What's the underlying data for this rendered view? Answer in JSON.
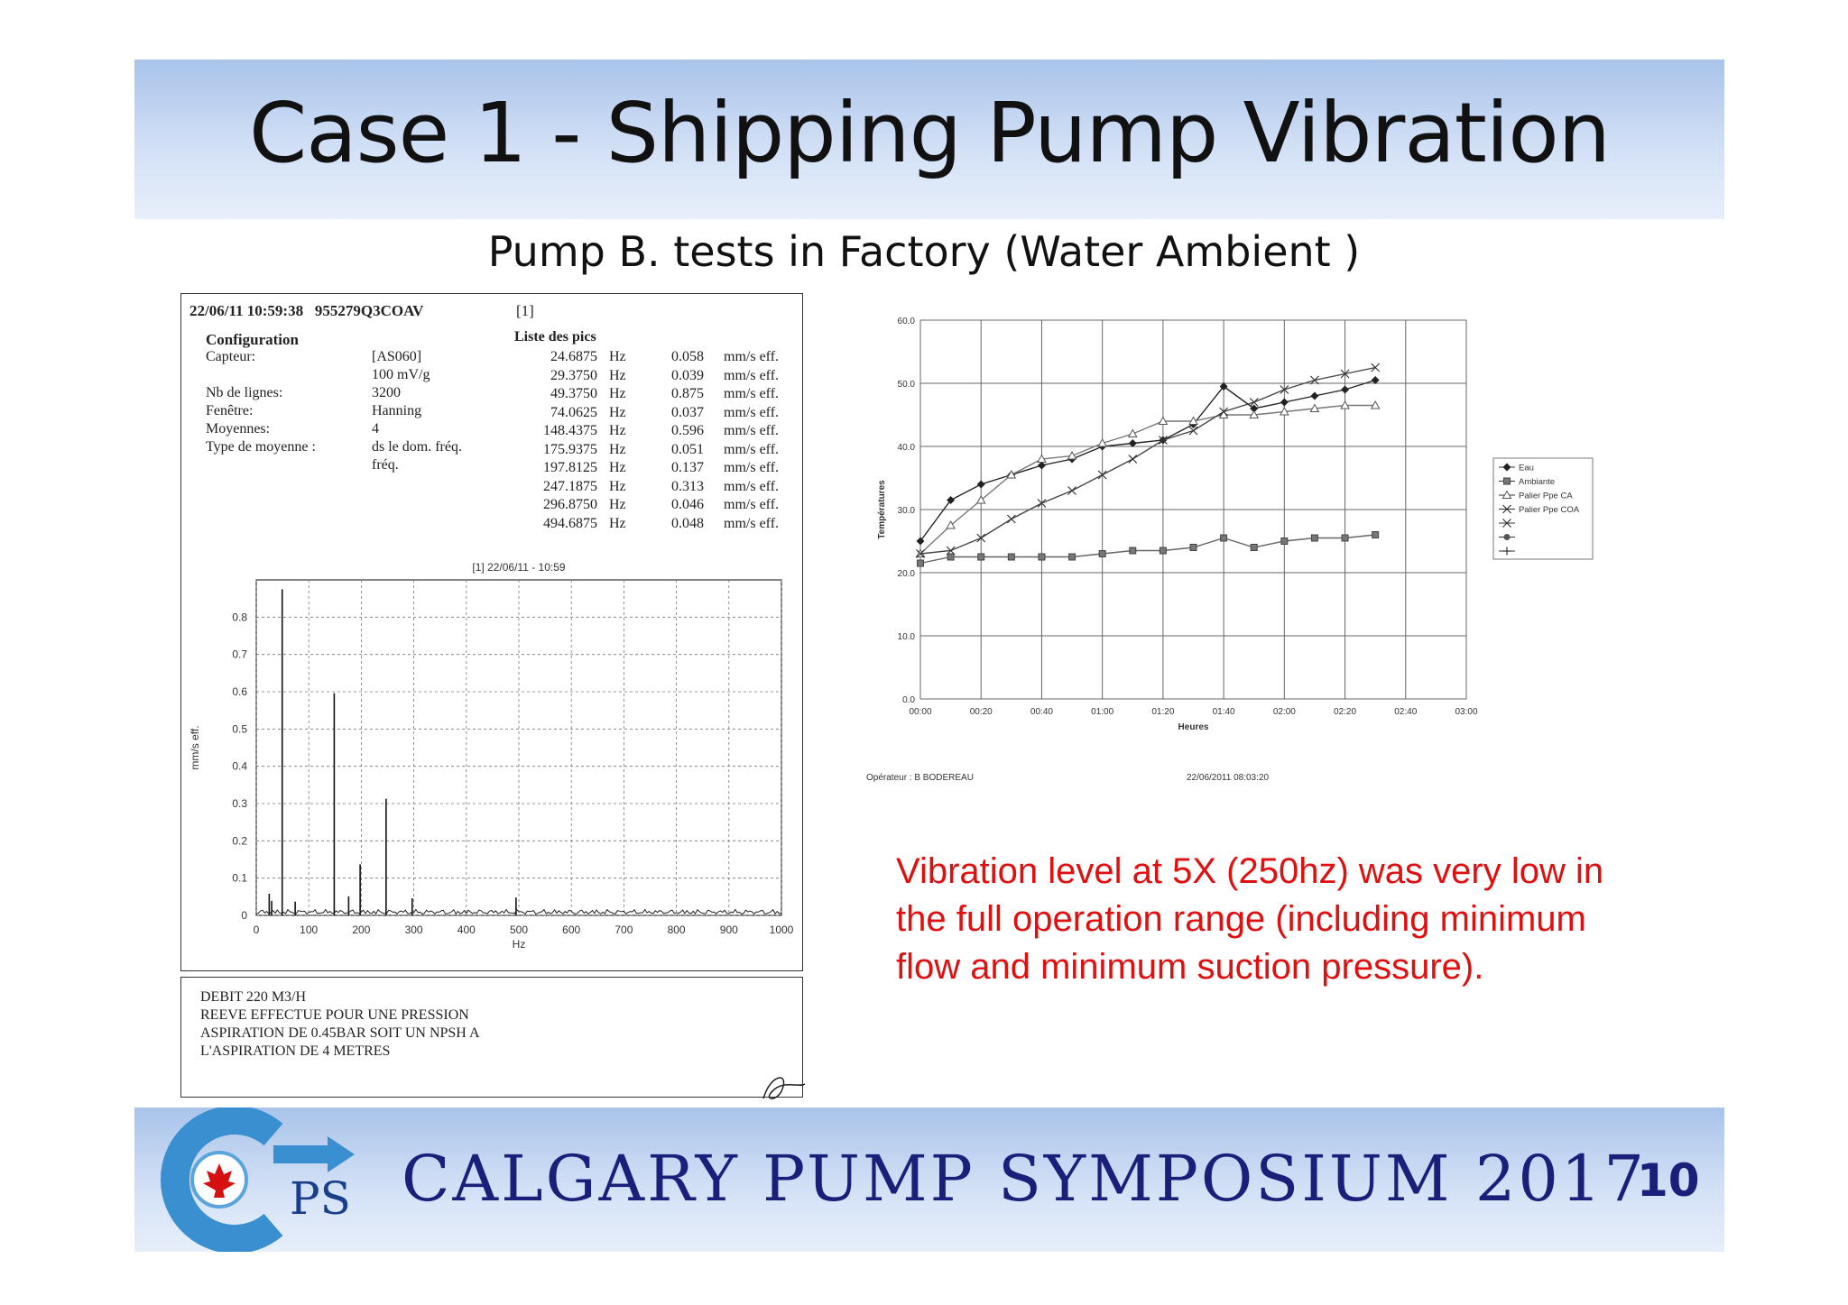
{
  "slide": {
    "title": "Case 1 - Shipping Pump Vibration",
    "subtitle": "Pump B. tests in Factory (Water Ambient )",
    "note": "Vibration level at 5X (250hz) was very low in the full operation range (including minimum flow and minimum suction pressure).",
    "footer": "CALGARY PUMP SYMPOSIUM 2017",
    "page_number": "10",
    "logo_text": "PS"
  },
  "report": {
    "header_date": "22/06/11",
    "header_time": "10:59:38",
    "header_id": "955279Q3COAV",
    "header_tag": "[1]",
    "config_title": "Configuration",
    "config": [
      {
        "label": "Capteur:",
        "value": "[AS060]"
      },
      {
        "label": "",
        "value": "100 mV/g"
      },
      {
        "label": "Nb de lignes:",
        "value": "3200"
      },
      {
        "label": "Fenêtre:",
        "value": "Hanning"
      },
      {
        "label": "Moyennes:",
        "value": "4"
      },
      {
        "label": "Type de moyenne :",
        "value": "ds le dom. fréq."
      },
      {
        "label": "",
        "value": "fréq."
      }
    ],
    "peaks_title": "Liste des pics",
    "peaks": [
      {
        "freq": "24.6875",
        "unit": "Hz",
        "amp": "0.058",
        "amp_unit": "mm/s eff."
      },
      {
        "freq": "29.3750",
        "unit": "Hz",
        "amp": "0.039",
        "amp_unit": "mm/s eff."
      },
      {
        "freq": "49.3750",
        "unit": "Hz",
        "amp": "0.875",
        "amp_unit": "mm/s eff."
      },
      {
        "freq": "74.0625",
        "unit": "Hz",
        "amp": "0.037",
        "amp_unit": "mm/s eff."
      },
      {
        "freq": "148.4375",
        "unit": "Hz",
        "amp": "0.596",
        "amp_unit": "mm/s eff."
      },
      {
        "freq": "175.9375",
        "unit": "Hz",
        "amp": "0.051",
        "amp_unit": "mm/s eff."
      },
      {
        "freq": "197.8125",
        "unit": "Hz",
        "amp": "0.137",
        "amp_unit": "mm/s eff."
      },
      {
        "freq": "247.1875",
        "unit": "Hz",
        "amp": "0.313",
        "amp_unit": "mm/s eff."
      },
      {
        "freq": "296.8750",
        "unit": "Hz",
        "amp": "0.046",
        "amp_unit": "mm/s eff."
      },
      {
        "freq": "494.6875",
        "unit": "Hz",
        "amp": "0.048",
        "amp_unit": "mm/s eff."
      }
    ],
    "notes": [
      "DEBIT 220 M3/H",
      "REEVE EFFECTUE POUR UNE PRESSION",
      "ASPIRATION DE 0.45BAR SOIT UN NPSH A",
      "L'ASPIRATION DE 4 METRES"
    ]
  },
  "chart_data": [
    {
      "type": "bar",
      "title": "[1] 22/06/11 - 10:59",
      "xlabel": "Hz",
      "ylabel": "mm/s eff.",
      "xlim": [
        0,
        1000
      ],
      "ylim": [
        0,
        0.9
      ],
      "x_ticks": [
        "0",
        "100",
        "200",
        "300",
        "400",
        "500",
        "600",
        "700",
        "800",
        "900",
        "1000"
      ],
      "y_ticks": [
        "0",
        "0.1",
        "0.2",
        "0.3",
        "0.4",
        "0.5",
        "0.6",
        "0.7",
        "0.8"
      ],
      "grid": true,
      "x": [
        24.6875,
        29.375,
        49.375,
        74.0625,
        148.4375,
        175.9375,
        197.8125,
        247.1875,
        296.875,
        494.6875
      ],
      "values": [
        0.058,
        0.039,
        0.875,
        0.037,
        0.596,
        0.051,
        0.137,
        0.313,
        0.046,
        0.048
      ]
    },
    {
      "type": "line",
      "xlabel": "Heures",
      "ylabel": "Températures",
      "xlim": [
        "00:00",
        "03:00"
      ],
      "ylim": [
        0,
        60
      ],
      "x_ticks": [
        "00:00",
        "00:20",
        "00:40",
        "01:00",
        "01:20",
        "01:40",
        "02:00",
        "02:20",
        "02:40",
        "03:00"
      ],
      "y_ticks": [
        "0.0",
        "10.0",
        "20.0",
        "30.0",
        "40.0",
        "50.0",
        "60.0"
      ],
      "grid": true,
      "legend_position": "right",
      "legend_extra_markers": [
        "x",
        "circle",
        "plus"
      ],
      "series": [
        {
          "name": "Eau",
          "marker": "diamond",
          "x": [
            "00:00",
            "00:10",
            "00:20",
            "00:30",
            "00:40",
            "00:50",
            "01:00",
            "01:10",
            "01:20",
            "01:30",
            "01:40",
            "01:50",
            "02:00",
            "02:10",
            "02:20",
            "02:30"
          ],
          "values": [
            25.0,
            31.5,
            34.0,
            35.5,
            37.0,
            38.0,
            40.0,
            40.5,
            41.0,
            43.5,
            49.5,
            46.0,
            47.0,
            48.0,
            49.0,
            50.5
          ]
        },
        {
          "name": "Ambiante",
          "marker": "square",
          "x": [
            "00:00",
            "00:10",
            "00:20",
            "00:30",
            "00:40",
            "00:50",
            "01:00",
            "01:10",
            "01:20",
            "01:30",
            "01:40",
            "01:50",
            "02:00",
            "02:10",
            "02:20",
            "02:30"
          ],
          "values": [
            21.5,
            22.5,
            22.5,
            22.5,
            22.5,
            22.5,
            23.0,
            23.5,
            23.5,
            24.0,
            25.5,
            24.0,
            25.0,
            25.5,
            25.5,
            26.0
          ]
        },
        {
          "name": "Palier Ppe CA",
          "marker": "triangle",
          "x": [
            "00:00",
            "00:10",
            "00:20",
            "00:30",
            "00:40",
            "00:50",
            "01:00",
            "01:10",
            "01:20",
            "01:30",
            "01:40",
            "01:50",
            "02:00",
            "02:10",
            "02:20",
            "02:30"
          ],
          "values": [
            23.0,
            27.5,
            31.5,
            35.5,
            38.0,
            38.5,
            40.5,
            42.0,
            44.0,
            44.0,
            45.0,
            45.0,
            45.5,
            46.0,
            46.5,
            46.5
          ]
        },
        {
          "name": "Palier Ppe COA",
          "marker": "x",
          "x": [
            "00:00",
            "00:10",
            "00:20",
            "00:30",
            "00:40",
            "00:50",
            "01:00",
            "01:10",
            "01:20",
            "01:30",
            "01:40",
            "01:50",
            "02:00",
            "02:10",
            "02:20",
            "02:30"
          ],
          "values": [
            23.0,
            23.5,
            25.5,
            28.5,
            31.0,
            33.0,
            35.5,
            38.0,
            41.0,
            42.5,
            45.5,
            47.0,
            49.0,
            50.5,
            51.5,
            52.5
          ]
        }
      ],
      "operator": "Opérateur : B BODEREAU",
      "timestamp": "22/06/2011 08:03:20"
    }
  ],
  "colors": {
    "title_band_top": "#a9c3ea",
    "title_band_bottom": "#e8effb",
    "footer_text": "#1a1f7a",
    "note_text": "#e01010",
    "logo_blue": "#3a8fd0",
    "logo_maple": "#d41010"
  }
}
